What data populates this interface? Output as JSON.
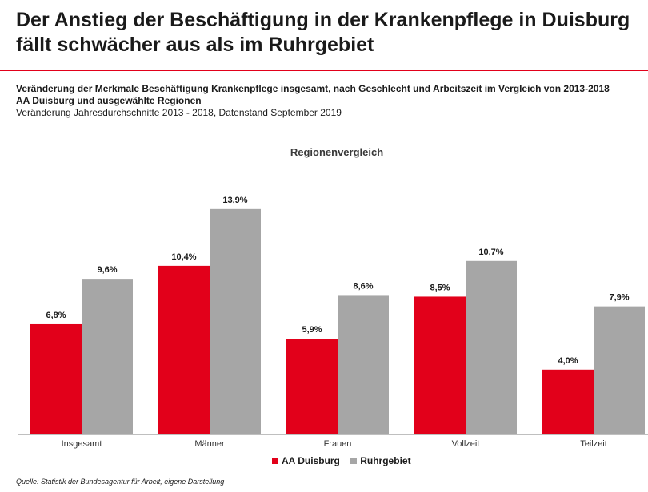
{
  "page": {
    "title": "Der Anstieg der Beschäftigung in der Krankenpflege in Duisburg fällt schwächer aus als im Ruhrgebiet",
    "subtitle_line1": "Veränderung der Merkmale Beschäftigung Krankenpflege insgesamt, nach Geschlecht und Arbeitszeit im Vergleich von 2013-2018",
    "subtitle_line2": "AA Duisburg und ausgewählte Regionen",
    "subtitle_line3": "Veränderung Jahresdurchschnitte 2013 - 2018, Datenstand September 2019",
    "source": "Quelle: Statistik der Bundesagentur für Arbeit, eigene Darstellung"
  },
  "colors": {
    "duisburg": "#e2001a",
    "ruhrgebiet": "#a6a6a6",
    "accent_rule": "#e2001a"
  },
  "chart_data": {
    "type": "bar",
    "title": "Regionenvergleich",
    "categories": [
      "Insgesamt",
      "Männer",
      "Frauen",
      "Vollzeit",
      "Teilzeit"
    ],
    "series": [
      {
        "name": "AA Duisburg",
        "values": [
          6.8,
          10.4,
          5.9,
          8.5,
          4.0
        ],
        "labels": [
          "6,8%",
          "10,4%",
          "5,9%",
          "8,5%",
          "4,0%"
        ],
        "color": "#e2001a"
      },
      {
        "name": "Ruhrgebiet",
        "values": [
          9.6,
          13.9,
          8.6,
          10.7,
          7.9
        ],
        "labels": [
          "9,6%",
          "13,9%",
          "8,6%",
          "10,7%",
          "7,9%"
        ],
        "color": "#a6a6a6"
      }
    ],
    "ylim": [
      0,
      16
    ],
    "grid": false,
    "legend_position": "bottom"
  }
}
